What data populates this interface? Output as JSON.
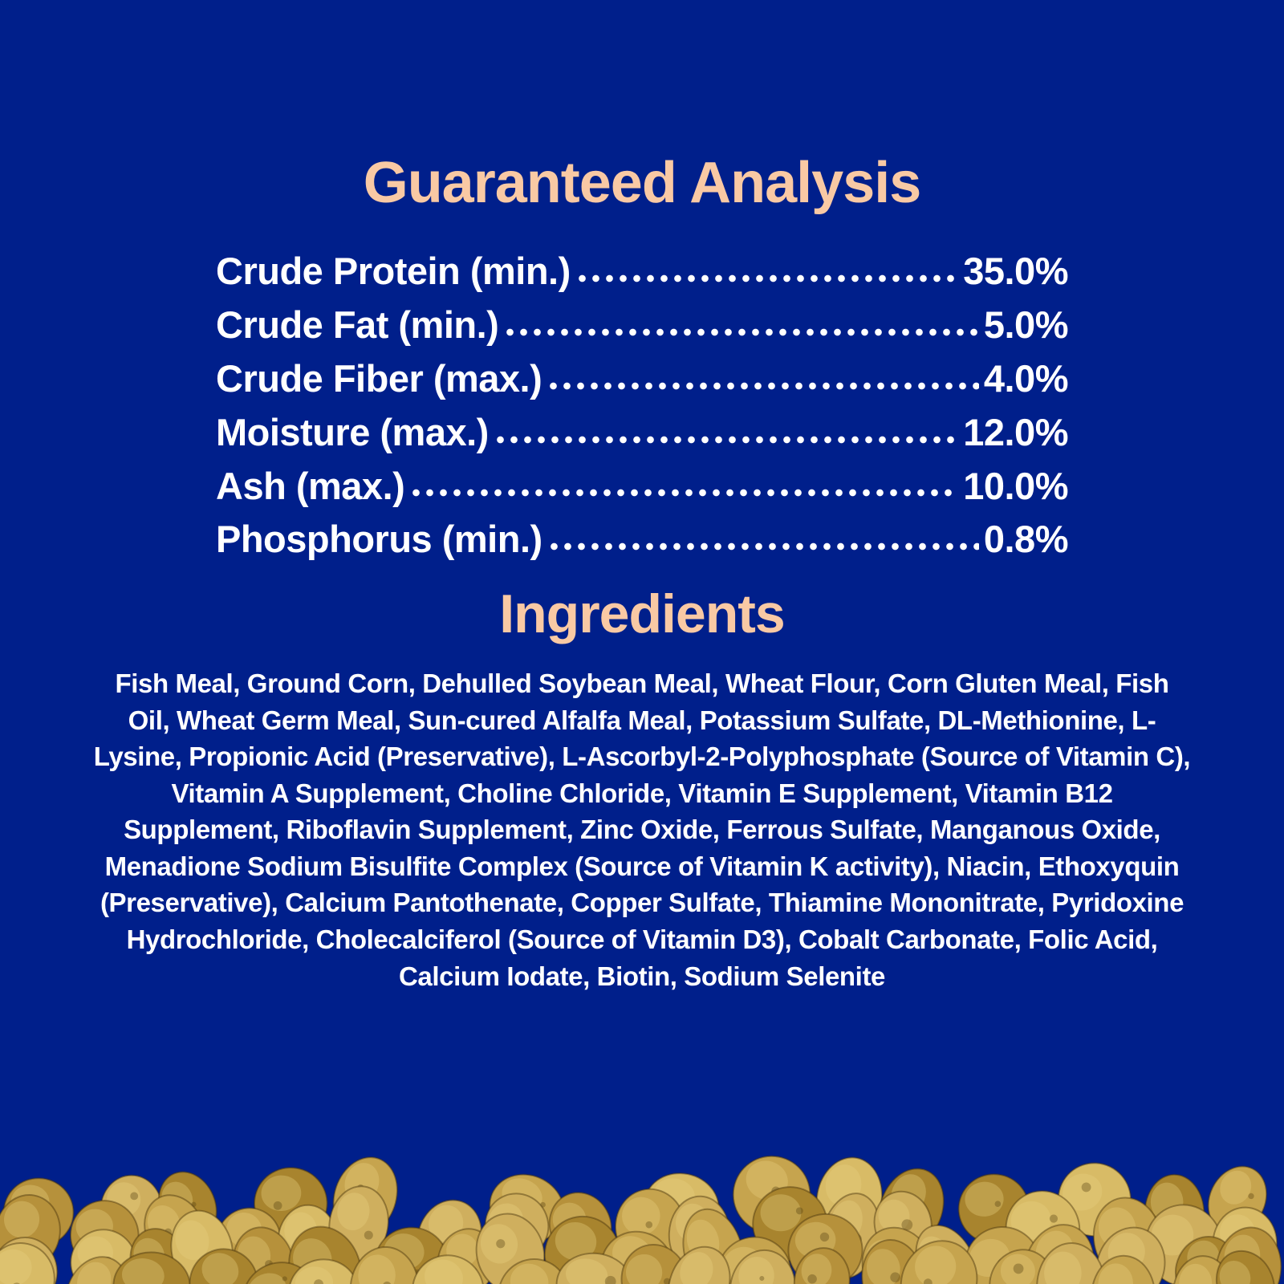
{
  "colors": {
    "background": "#001F8B",
    "accent_peach": "#F9C9A4",
    "body_text": "#FFFFFF"
  },
  "guaranteed_analysis": {
    "title": "Guaranteed Analysis",
    "rows": [
      {
        "label": "Crude Protein (min.)",
        "value": "35.0%"
      },
      {
        "label": "Crude Fat (min.)",
        "value": "5.0%"
      },
      {
        "label": "Crude Fiber (max.)",
        "value": "4.0%"
      },
      {
        "label": "Moisture (max.)",
        "value": "12.0%"
      },
      {
        "label": "Ash (max.)",
        "value": "10.0%"
      },
      {
        "label": "Phosphorus (min.)",
        "value": "0.8%"
      }
    ]
  },
  "ingredients": {
    "title": "Ingredients",
    "text": "Fish Meal, Ground Corn, Dehulled Soybean Meal, Wheat Flour, Corn Gluten Meal, Fish Oil, Wheat Germ Meal, Sun-cured Alfalfa Meal, Potassium Sulfate, DL-Methionine, L-Lysine, Propionic Acid (Preservative), L-Ascorbyl-2-Polyphosphate (Source of Vitamin C), Vitamin A Supplement, Choline Chloride, Vitamin E Supplement, Vitamin B12 Supplement, Riboflavin Supplement, Zinc Oxide, Ferrous Sulfate, Manganous Oxide, Menadione Sodium Bisulfite Complex (Source of Vitamin K activity), Niacin, Ethoxyquin (Preservative), Calcium Pantothenate, Copper Sulfate, Thiamine Mononitrate, Pyridoxine Hydrochloride, Cholecalciferol (Source of Vitamin D3), Cobalt Carbonate, Folic Acid, Calcium Iodate, Biotin, Sodium Selenite"
  },
  "pellets_photo": {
    "description": "pile of golden-brown fish food pellets along the bottom edge",
    "colors": [
      "#A8842E",
      "#B6913B",
      "#C6A44E",
      "#CFAF5E",
      "#D8BB66",
      "#E7D080"
    ]
  }
}
